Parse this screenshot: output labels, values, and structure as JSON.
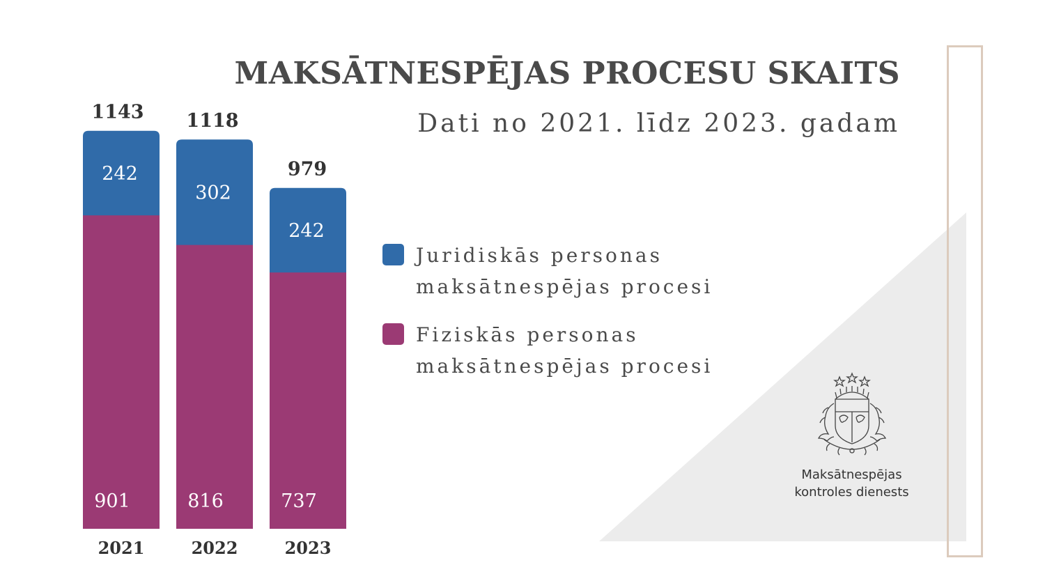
{
  "header": {
    "title": "MAKSĀTNESPĒJAS PROCESU SKAITS",
    "subtitle": "Dati no 2021. līdz 2023. gadam"
  },
  "chart_data": {
    "type": "bar",
    "stacked": true,
    "categories": [
      "2021",
      "2022",
      "2023"
    ],
    "totals": [
      1143,
      1118,
      979
    ],
    "series": [
      {
        "name": "Fiziskās personas maksātnespējas procesi",
        "values": [
          901,
          816,
          737
        ],
        "color": "#9b3a74"
      },
      {
        "name": "Juridiskās personas maksātnespējas procesi",
        "values": [
          242,
          302,
          242
        ],
        "color": "#306ba9"
      }
    ],
    "legend_position": "right",
    "grid": false,
    "axis_visible": false,
    "ylim": [
      0,
      1143
    ]
  },
  "legend": {
    "items": [
      {
        "label": "Juridiskās personas maksātnespējas procesi",
        "color": "#306ba9"
      },
      {
        "label": "Fiziskās personas maksātnespējas procesi",
        "color": "#9b3a74"
      }
    ]
  },
  "logo": {
    "line1": "Maksātnespējas",
    "line2": "kontroles dienests",
    "icon": "coat-of-arms-icon"
  },
  "colors": {
    "text": "#4a4a4a",
    "frame": "#dccbbd",
    "triangle": "#ececec"
  }
}
